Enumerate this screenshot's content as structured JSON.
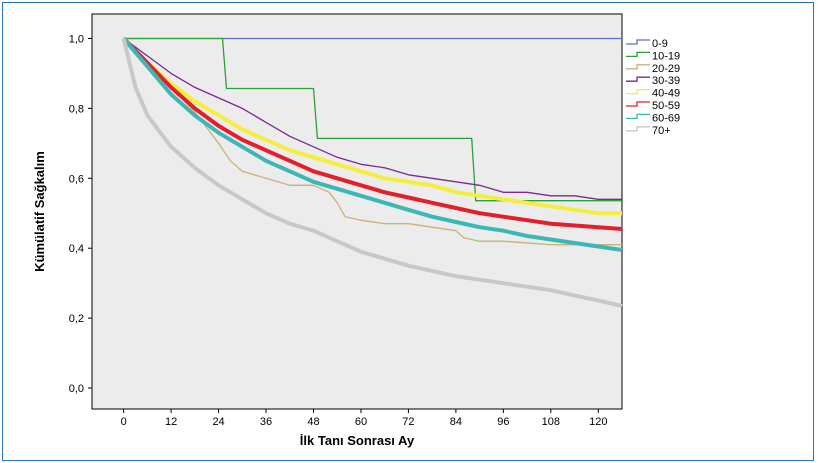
{
  "chart_data": {
    "type": "line",
    "title": "",
    "xlabel": "İlk Tanı Sonrası Ay",
    "ylabel": "Kümülatif Sağkalım",
    "xlim": [
      -8,
      126
    ],
    "ylim": [
      -0.06,
      1.07
    ],
    "x_ticks": [
      0,
      12,
      24,
      36,
      48,
      60,
      72,
      84,
      96,
      108,
      120
    ],
    "x_tick_labels": [
      "0",
      "12",
      "24",
      "36",
      "48",
      "60",
      "72",
      "84",
      "96",
      "108",
      "120"
    ],
    "y_ticks": [
      0.0,
      0.2,
      0.4,
      0.6,
      0.8,
      1.0
    ],
    "y_tick_labels": [
      "0,0",
      "0,2",
      "0,4",
      "0,6",
      "0,8",
      "1,0"
    ],
    "grid": false,
    "legend_position": "right",
    "series": [
      {
        "name": "0-9",
        "color": "#5b6fd6",
        "x": [
          0,
          126
        ],
        "y": [
          1.0,
          1.0
        ]
      },
      {
        "name": "10-19",
        "color": "#2e9e3a",
        "x": [
          0,
          25,
          26,
          48,
          49,
          88,
          89,
          126
        ],
        "y": [
          1.0,
          1.0,
          0.857,
          0.857,
          0.714,
          0.714,
          0.536,
          0.536
        ]
      },
      {
        "name": "20-29",
        "color": "#c9b37a",
        "x": [
          0,
          6,
          12,
          18,
          24,
          27,
          30,
          36,
          42,
          48,
          52,
          54,
          56,
          60,
          66,
          72,
          78,
          84,
          86,
          90,
          96,
          108,
          120,
          126
        ],
        "y": [
          1.0,
          0.93,
          0.86,
          0.79,
          0.7,
          0.65,
          0.62,
          0.6,
          0.58,
          0.58,
          0.56,
          0.53,
          0.49,
          0.48,
          0.47,
          0.47,
          0.46,
          0.45,
          0.43,
          0.42,
          0.42,
          0.41,
          0.41,
          0.41
        ]
      },
      {
        "name": "30-39",
        "color": "#7b2a8c",
        "x": [
          0,
          6,
          12,
          18,
          24,
          30,
          36,
          42,
          48,
          54,
          60,
          66,
          72,
          78,
          84,
          90,
          96,
          102,
          108,
          114,
          120,
          126
        ],
        "y": [
          1.0,
          0.95,
          0.9,
          0.86,
          0.83,
          0.8,
          0.76,
          0.72,
          0.69,
          0.66,
          0.64,
          0.63,
          0.61,
          0.6,
          0.59,
          0.58,
          0.56,
          0.56,
          0.55,
          0.55,
          0.54,
          0.54
        ]
      },
      {
        "name": "40-49",
        "color": "#f5ee3c",
        "x": [
          0,
          6,
          12,
          18,
          24,
          30,
          36,
          42,
          48,
          54,
          60,
          66,
          72,
          78,
          84,
          90,
          96,
          102,
          108,
          114,
          120,
          126
        ],
        "y": [
          1.0,
          0.93,
          0.87,
          0.82,
          0.78,
          0.74,
          0.71,
          0.68,
          0.66,
          0.64,
          0.62,
          0.6,
          0.59,
          0.58,
          0.56,
          0.55,
          0.54,
          0.53,
          0.52,
          0.51,
          0.5,
          0.5
        ]
      },
      {
        "name": "50-59",
        "color": "#e41e2a",
        "x": [
          0,
          6,
          12,
          18,
          24,
          30,
          36,
          42,
          48,
          54,
          60,
          66,
          72,
          78,
          84,
          90,
          96,
          102,
          108,
          114,
          120,
          126
        ],
        "y": [
          1.0,
          0.93,
          0.86,
          0.8,
          0.75,
          0.71,
          0.68,
          0.65,
          0.62,
          0.6,
          0.58,
          0.56,
          0.545,
          0.53,
          0.515,
          0.5,
          0.49,
          0.48,
          0.47,
          0.465,
          0.46,
          0.455
        ]
      },
      {
        "name": "60-69",
        "color": "#3db7b5",
        "x": [
          0,
          6,
          12,
          18,
          24,
          30,
          36,
          42,
          48,
          54,
          60,
          66,
          72,
          78,
          84,
          90,
          96,
          102,
          108,
          114,
          120,
          126
        ],
        "y": [
          1.0,
          0.92,
          0.84,
          0.78,
          0.73,
          0.69,
          0.65,
          0.62,
          0.59,
          0.57,
          0.55,
          0.53,
          0.51,
          0.49,
          0.475,
          0.46,
          0.45,
          0.435,
          0.425,
          0.415,
          0.405,
          0.395
        ]
      },
      {
        "name": "70+",
        "color": "#c8c8c8",
        "x": [
          0,
          3,
          6,
          12,
          18,
          24,
          30,
          36,
          42,
          48,
          54,
          60,
          66,
          72,
          78,
          84,
          90,
          96,
          102,
          108,
          114,
          120,
          126
        ],
        "y": [
          1.0,
          0.86,
          0.78,
          0.69,
          0.63,
          0.58,
          0.54,
          0.5,
          0.47,
          0.45,
          0.42,
          0.39,
          0.37,
          0.35,
          0.335,
          0.32,
          0.31,
          0.3,
          0.29,
          0.28,
          0.265,
          0.25,
          0.235
        ]
      }
    ]
  }
}
